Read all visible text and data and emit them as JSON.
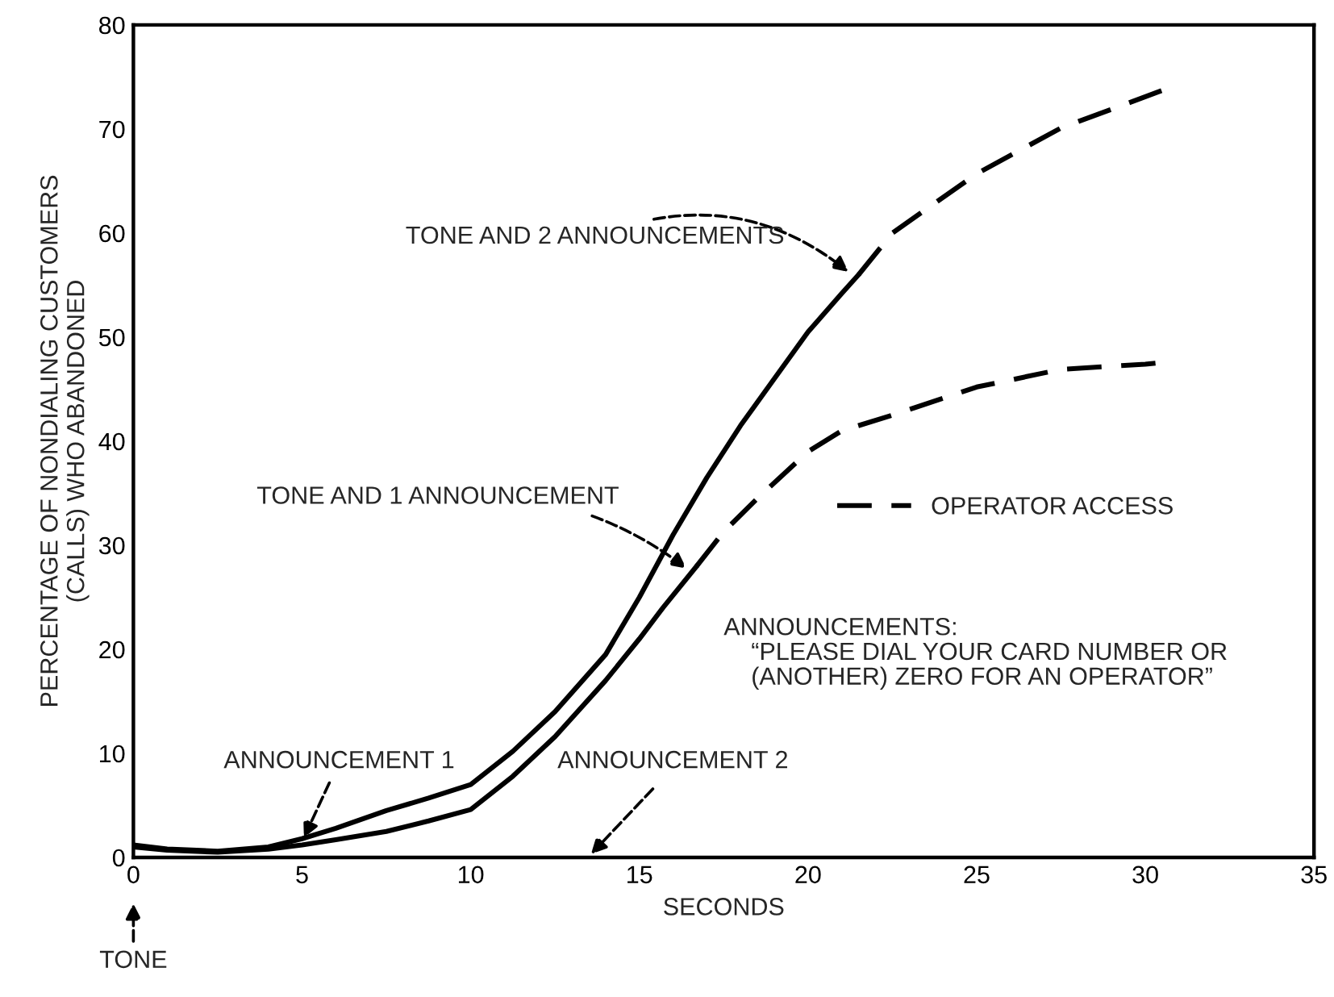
{
  "chart_data": {
    "type": "line",
    "xlabel": "SECONDS",
    "ylabel": "PERCENTAGE OF NONDIALING CUSTOMERS\n(CALLS) WHO ABANDONED",
    "xlim": [
      0,
      35
    ],
    "xticks": [
      0,
      5,
      10,
      15,
      20,
      25,
      30,
      35
    ],
    "ylim": [
      0,
      80
    ],
    "yticks": [
      0,
      10,
      20,
      30,
      40,
      50,
      60,
      70,
      80
    ],
    "grid": false,
    "legend": "right",
    "marker": "none",
    "series": [
      {
        "color": "#000000",
        "line_style": "solid",
        "x": [
          0,
          1,
          2.5,
          4,
          5,
          6,
          7.5,
          8.75,
          10,
          11.25,
          12.5,
          14,
          15,
          16,
          17,
          18,
          19,
          20,
          21,
          21.5
        ],
        "values": [
          1.2,
          0.8,
          0.6,
          1.0,
          1.8,
          2.8,
          4.5,
          5.7,
          7.0,
          10.2,
          14.0,
          19.5,
          25.0,
          31.0,
          36.5,
          41.5,
          46.0,
          50.5,
          54.2,
          56.0
        ]
      },
      {
        "name": "OPERATOR ACCESS",
        "color": "#000000",
        "line_style": "dashed",
        "x": [
          21.5,
          22.5,
          25,
          27.5,
          30,
          30.5
        ],
        "values": [
          56.0,
          60.0,
          65.7,
          70.1,
          73.1,
          73.7
        ]
      },
      {
        "color": "#000000",
        "line_style": "solid",
        "x": [
          0,
          1,
          2.5,
          4,
          5,
          6,
          7.5,
          8.75,
          10,
          11.25,
          12.5,
          14,
          15,
          15.7,
          16.7
        ],
        "values": [
          1.0,
          0.7,
          0.5,
          0.8,
          1.2,
          1.7,
          2.5,
          3.5,
          4.6,
          7.8,
          11.6,
          17.0,
          21.0,
          24.0,
          28.0
        ]
      },
      {
        "color": "#000000",
        "line_style": "dashed",
        "x": [
          16.7,
          17.5,
          18.5,
          20,
          21,
          22.5,
          25,
          27.5,
          30,
          30.3
        ],
        "values": [
          28.0,
          31.3,
          34.5,
          39.0,
          41.0,
          42.5,
          45.2,
          46.9,
          47.4,
          47.5
        ]
      }
    ],
    "annotations": [
      {
        "text": "TONE AND 2 ANNOUNCEMENTS",
        "x": 21.3,
        "y": 56
      },
      {
        "text": "TONE AND 1 ANNOUNCEMENT",
        "x": 16.5,
        "y": 27.5
      },
      {
        "text": "ANNOUNCEMENT 1",
        "x": 5,
        "y": 1.5
      },
      "ANNOUNCEMENT 2",
      "TONE",
      "ANNOUNCEMENTS:\n    “PLEASE DIAL YOUR CARD NUMBER OR\n    (ANOTHER) ZERO FOR AN OPERATOR”"
    ]
  }
}
